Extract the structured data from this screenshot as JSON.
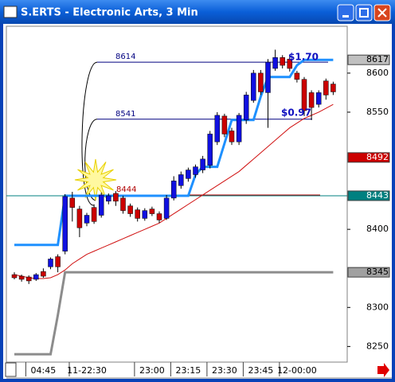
{
  "window_title": "S.ERTS - Electronic Arts, 3 Min",
  "chart_data": {
    "type": "candlestick",
    "categories": [
      null,
      null,
      null,
      null,
      "04:45",
      null,
      null,
      null,
      null,
      null,
      "11-22:30",
      null,
      null,
      null,
      null,
      null,
      null,
      null,
      null,
      "23:00",
      null,
      null,
      null,
      null,
      "23:15",
      null,
      null,
      null,
      null,
      "23:30",
      null,
      null,
      null,
      null,
      "23:45",
      null,
      null,
      null,
      null,
      "12-00:00",
      null,
      null,
      null,
      null,
      null
    ],
    "open": [
      8342,
      8340,
      8339,
      8336,
      8346,
      8352,
      8365,
      8372,
      8440,
      8426,
      8408,
      8428,
      8418,
      8436,
      8446,
      8440,
      8430,
      8425,
      8414,
      8426,
      8420,
      8414,
      8440,
      8456,
      8465,
      8470,
      8476,
      8482,
      8512,
      8545,
      8526,
      8512,
      8540,
      8565,
      8600,
      8575,
      8606,
      8620,
      8618,
      8600,
      8592,
      8575,
      8560,
      8590,
      8586
    ],
    "high": [
      8345,
      8342,
      8341,
      8344,
      8350,
      8364,
      8368,
      8445,
      8448,
      8430,
      8421,
      8432,
      8447,
      8446,
      8449,
      8443,
      8433,
      8428,
      8427,
      8429,
      8423,
      8444,
      8468,
      8474,
      8479,
      8483,
      8494,
      8526,
      8550,
      8548,
      8530,
      8549,
      8576,
      8604,
      8604,
      8618,
      8630,
      8623,
      8622,
      8603,
      8595,
      8578,
      8578,
      8593,
      8589
    ],
    "low": [
      8336,
      8333,
      8330,
      8334,
      8338,
      8349,
      8345,
      8368,
      8410,
      8390,
      8404,
      8407,
      8415,
      8432,
      8430,
      8420,
      8416,
      8410,
      8411,
      8417,
      8408,
      8412,
      8437,
      8452,
      8461,
      8466,
      8472,
      8478,
      8508,
      8518,
      8508,
      8508,
      8535,
      8562,
      8572,
      8530,
      8603,
      8606,
      8602,
      8588,
      8545,
      8540,
      8556,
      8566,
      8572
    ],
    "close": [
      8338,
      8336,
      8334,
      8342,
      8340,
      8362,
      8352,
      8442,
      8428,
      8402,
      8418,
      8410,
      8444,
      8443,
      8436,
      8424,
      8420,
      8414,
      8424,
      8420,
      8412,
      8440,
      8462,
      8470,
      8476,
      8480,
      8490,
      8522,
      8546,
      8522,
      8512,
      8546,
      8572,
      8600,
      8576,
      8614,
      8620,
      8610,
      8606,
      8592,
      8552,
      8556,
      8575,
      8572,
      8576
    ],
    "up_color": "#1010e0",
    "down_color": "#cc0000",
    "lines": [
      {
        "color": "#8c8c8c",
        "values": [
          8240,
          8240,
          8240,
          8240,
          8240,
          8240,
          8290,
          8345,
          8345,
          8345,
          8345,
          8345,
          8345,
          8345,
          8345,
          8345,
          8345,
          8345,
          8345,
          8345,
          8345,
          8345,
          8345,
          8345,
          8345,
          8345,
          8345,
          8345,
          8345,
          8345,
          8345,
          8345,
          8345,
          8345,
          8345,
          8345,
          8345,
          8345,
          8345,
          8345,
          8345,
          8345,
          8345,
          8345,
          8345
        ]
      },
      {
        "color": "#d01010",
        "values": [
          8342,
          8340,
          8338,
          8337,
          8337,
          8338,
          8342,
          8348,
          8356,
          8362,
          8368,
          8372,
          8376,
          8380,
          8384,
          8388,
          8392,
          8396,
          8400,
          8404,
          8408,
          8414,
          8420,
          8426,
          8432,
          8438,
          8444,
          8450,
          8456,
          8462,
          8468,
          8474,
          8482,
          8490,
          8498,
          8506,
          8514,
          8522,
          8530,
          8536,
          8542,
          8546,
          8550,
          8555,
          8560
        ]
      },
      {
        "color": "#1e90ff",
        "values": [
          8380,
          8380,
          8380,
          8380,
          8380,
          8380,
          8380,
          8443,
          8443,
          8443,
          8443,
          8443,
          8443,
          8443,
          8443,
          8443,
          8443,
          8443,
          8443,
          8443,
          8443,
          8443,
          8443,
          8443,
          8443,
          8470,
          8480,
          8480,
          8480,
          8510,
          8540,
          8540,
          8540,
          8540,
          8570,
          8595,
          8595,
          8595,
          8595,
          8610,
          8617,
          8617,
          8617,
          8617,
          8617
        ]
      }
    ],
    "levels": [
      {
        "value": 8614,
        "color": "#000080"
      },
      {
        "value": 8541,
        "color": "#000080"
      },
      {
        "value": 8444,
        "color": "#b00000"
      },
      {
        "value": 8443,
        "color": "#008080"
      }
    ],
    "annotations": [
      "$1.70",
      "$0.97"
    ],
    "price_labels": [
      {
        "value": 8617,
        "color": "#c0c0c0",
        "text_color": "#000000"
      },
      {
        "value": 8492,
        "color": "#cc0000",
        "text_color": "#ffffff"
      },
      {
        "value": 8443,
        "color": "#008080",
        "text_color": "#ffffff"
      },
      {
        "value": 8345,
        "color": "#a0a0a0",
        "text_color": "#000000"
      }
    ],
    "ylim": [
      8230,
      8660
    ],
    "yticks": [
      8250,
      8300,
      8400,
      8550,
      8600
    ]
  }
}
